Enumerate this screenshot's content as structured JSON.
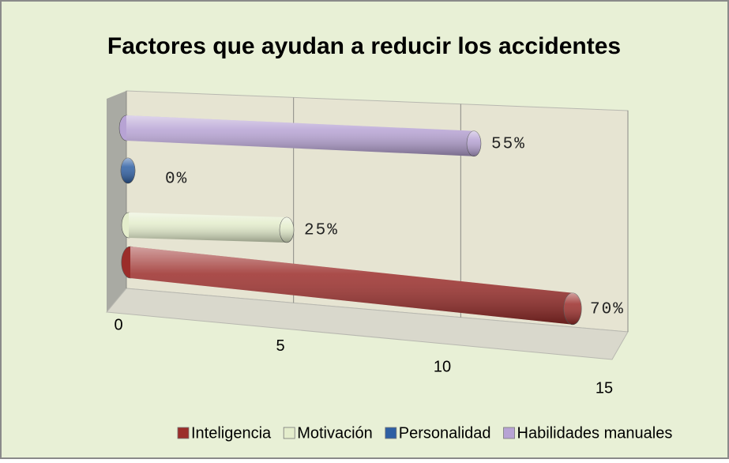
{
  "chart_data": {
    "type": "bar3d",
    "title": "Factores que ayudan a reducir los accidentes",
    "series": [
      {
        "name": "Inteligencia",
        "color": "#9b2d2a",
        "values": [
          14
        ],
        "value_labels": [
          "70%"
        ]
      },
      {
        "name": "Motivación",
        "color": "#e4edcc",
        "values": [
          5
        ],
        "value_labels": [
          "25%"
        ]
      },
      {
        "name": "Personalidad",
        "color": "#2e5fa3",
        "values": [
          0
        ],
        "value_labels": [
          "0%"
        ]
      },
      {
        "name": "Habilidades manuales",
        "color": "#b7a3d4",
        "values": [
          11
        ],
        "value_labels": [
          "55%"
        ]
      }
    ],
    "xlim": [
      0,
      15
    ],
    "xticks": [
      0,
      5,
      10,
      15
    ],
    "grid": true,
    "legend": "bottom"
  }
}
